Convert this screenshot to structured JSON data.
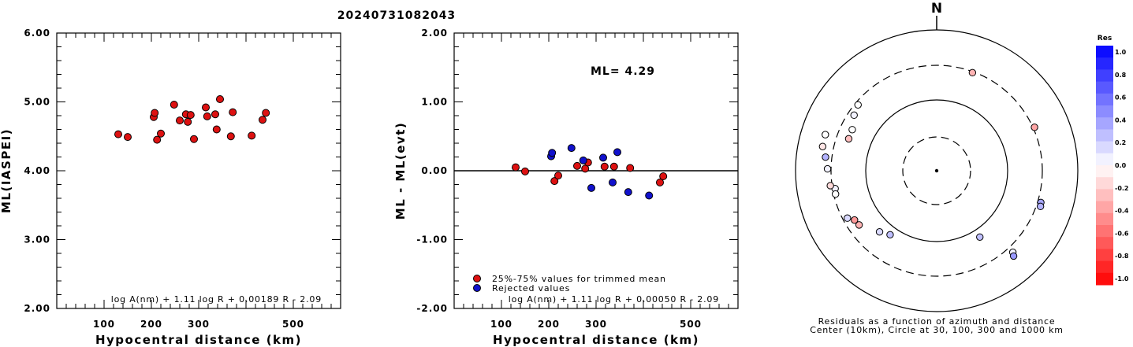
{
  "title": "20240731082043",
  "colors": {
    "accepted": "#dd1111",
    "rejected": "#1111cc",
    "axis": "#000000"
  },
  "chart_data": [
    {
      "type": "scatter",
      "ylabel": "ML(IASPEI)",
      "xlabel": "Hypocentral distance (km)",
      "xlim": [
        0,
        600
      ],
      "ylim": [
        2.0,
        6.0
      ],
      "xticks": [
        "100",
        "200",
        "300",
        "500"
      ],
      "yticks": [
        "2.00",
        "3.00",
        "4.00",
        "5.00",
        "6.00"
      ],
      "formula": "log A(nm) + 1.11 log R + 0.00189 R - 2.09",
      "points": [
        [
          130,
          4.53
        ],
        [
          150,
          4.49
        ],
        [
          205,
          4.78
        ],
        [
          207,
          4.84
        ],
        [
          212,
          4.45
        ],
        [
          220,
          4.54
        ],
        [
          248,
          4.96
        ],
        [
          260,
          4.73
        ],
        [
          273,
          4.82
        ],
        [
          277,
          4.71
        ],
        [
          283,
          4.81
        ],
        [
          290,
          4.46
        ],
        [
          315,
          4.92
        ],
        [
          318,
          4.79
        ],
        [
          335,
          4.82
        ],
        [
          338,
          4.6
        ],
        [
          345,
          5.04
        ],
        [
          368,
          4.5
        ],
        [
          372,
          4.85
        ],
        [
          412,
          4.51
        ],
        [
          435,
          4.74
        ],
        [
          442,
          4.84
        ]
      ]
    },
    {
      "type": "scatter",
      "ylabel": "ML - ML(evt)",
      "xlabel": "Hypocentral distance (km)",
      "xlim": [
        0,
        600
      ],
      "ylim": [
        -2.0,
        2.0
      ],
      "xticks": [
        "100",
        "200",
        "300",
        "500"
      ],
      "yticks": [
        "-2.00",
        "-1.00",
        "0.00",
        "1.00",
        "2.00"
      ],
      "annotation": "ML= 4.29",
      "formula": "log A(nm) + 1.11 log R + 0.00050 R - 2.09",
      "legend": [
        "25%-75% values for trimmed mean",
        "Rejected values"
      ],
      "accepted": [
        [
          130,
          0.05
        ],
        [
          150,
          -0.01
        ],
        [
          212,
          -0.15
        ],
        [
          220,
          -0.07
        ],
        [
          260,
          0.07
        ],
        [
          277,
          0.03
        ],
        [
          283,
          0.12
        ],
        [
          318,
          0.06
        ],
        [
          338,
          0.06
        ],
        [
          372,
          0.04
        ],
        [
          435,
          -0.17
        ],
        [
          442,
          -0.08
        ]
      ],
      "rejected": [
        [
          205,
          0.21
        ],
        [
          207,
          0.26
        ],
        [
          248,
          0.33
        ],
        [
          273,
          0.15
        ],
        [
          290,
          -0.25
        ],
        [
          315,
          0.19
        ],
        [
          335,
          -0.17
        ],
        [
          345,
          0.27
        ],
        [
          368,
          -0.31
        ],
        [
          412,
          -0.36
        ]
      ]
    },
    {
      "type": "scatter",
      "north_label": "N",
      "caption": [
        "Residuals as a function of azimuth and distance",
        "Center (10km), Circle at 30, 100, 300 and 1000 km"
      ],
      "colorbar": {
        "title": "Res",
        "labels": [
          "1.0",
          "0.8",
          "0.6",
          "0.4",
          "0.2",
          "0.0",
          "-0.2",
          "-0.4",
          "-0.6",
          "-0.8",
          "-1.0"
        ]
      },
      "stations": [
        [
          -144,
          0.25
        ],
        [
          -137,
          0.15
        ],
        [
          -125,
          -0.3
        ],
        [
          -121,
          -0.4
        ],
        [
          -118,
          0.15
        ],
        [
          -100,
          0.05
        ],
        [
          -103,
          0.0
        ],
        [
          -98,
          -0.15
        ],
        [
          -89,
          0.05
        ],
        [
          -83,
          0.3
        ],
        [
          -78,
          -0.1
        ],
        [
          -72,
          0.0
        ],
        [
          -70,
          -0.25
        ],
        [
          -64,
          0.0
        ],
        [
          -56,
          0.05
        ],
        [
          -50,
          0.0
        ],
        [
          20,
          -0.3
        ],
        [
          66,
          -0.35
        ],
        [
          107,
          0.35
        ],
        [
          109,
          0.3
        ],
        [
          137,
          0.05
        ],
        [
          138,
          0.4
        ],
        [
          147,
          0.25
        ]
      ]
    }
  ]
}
